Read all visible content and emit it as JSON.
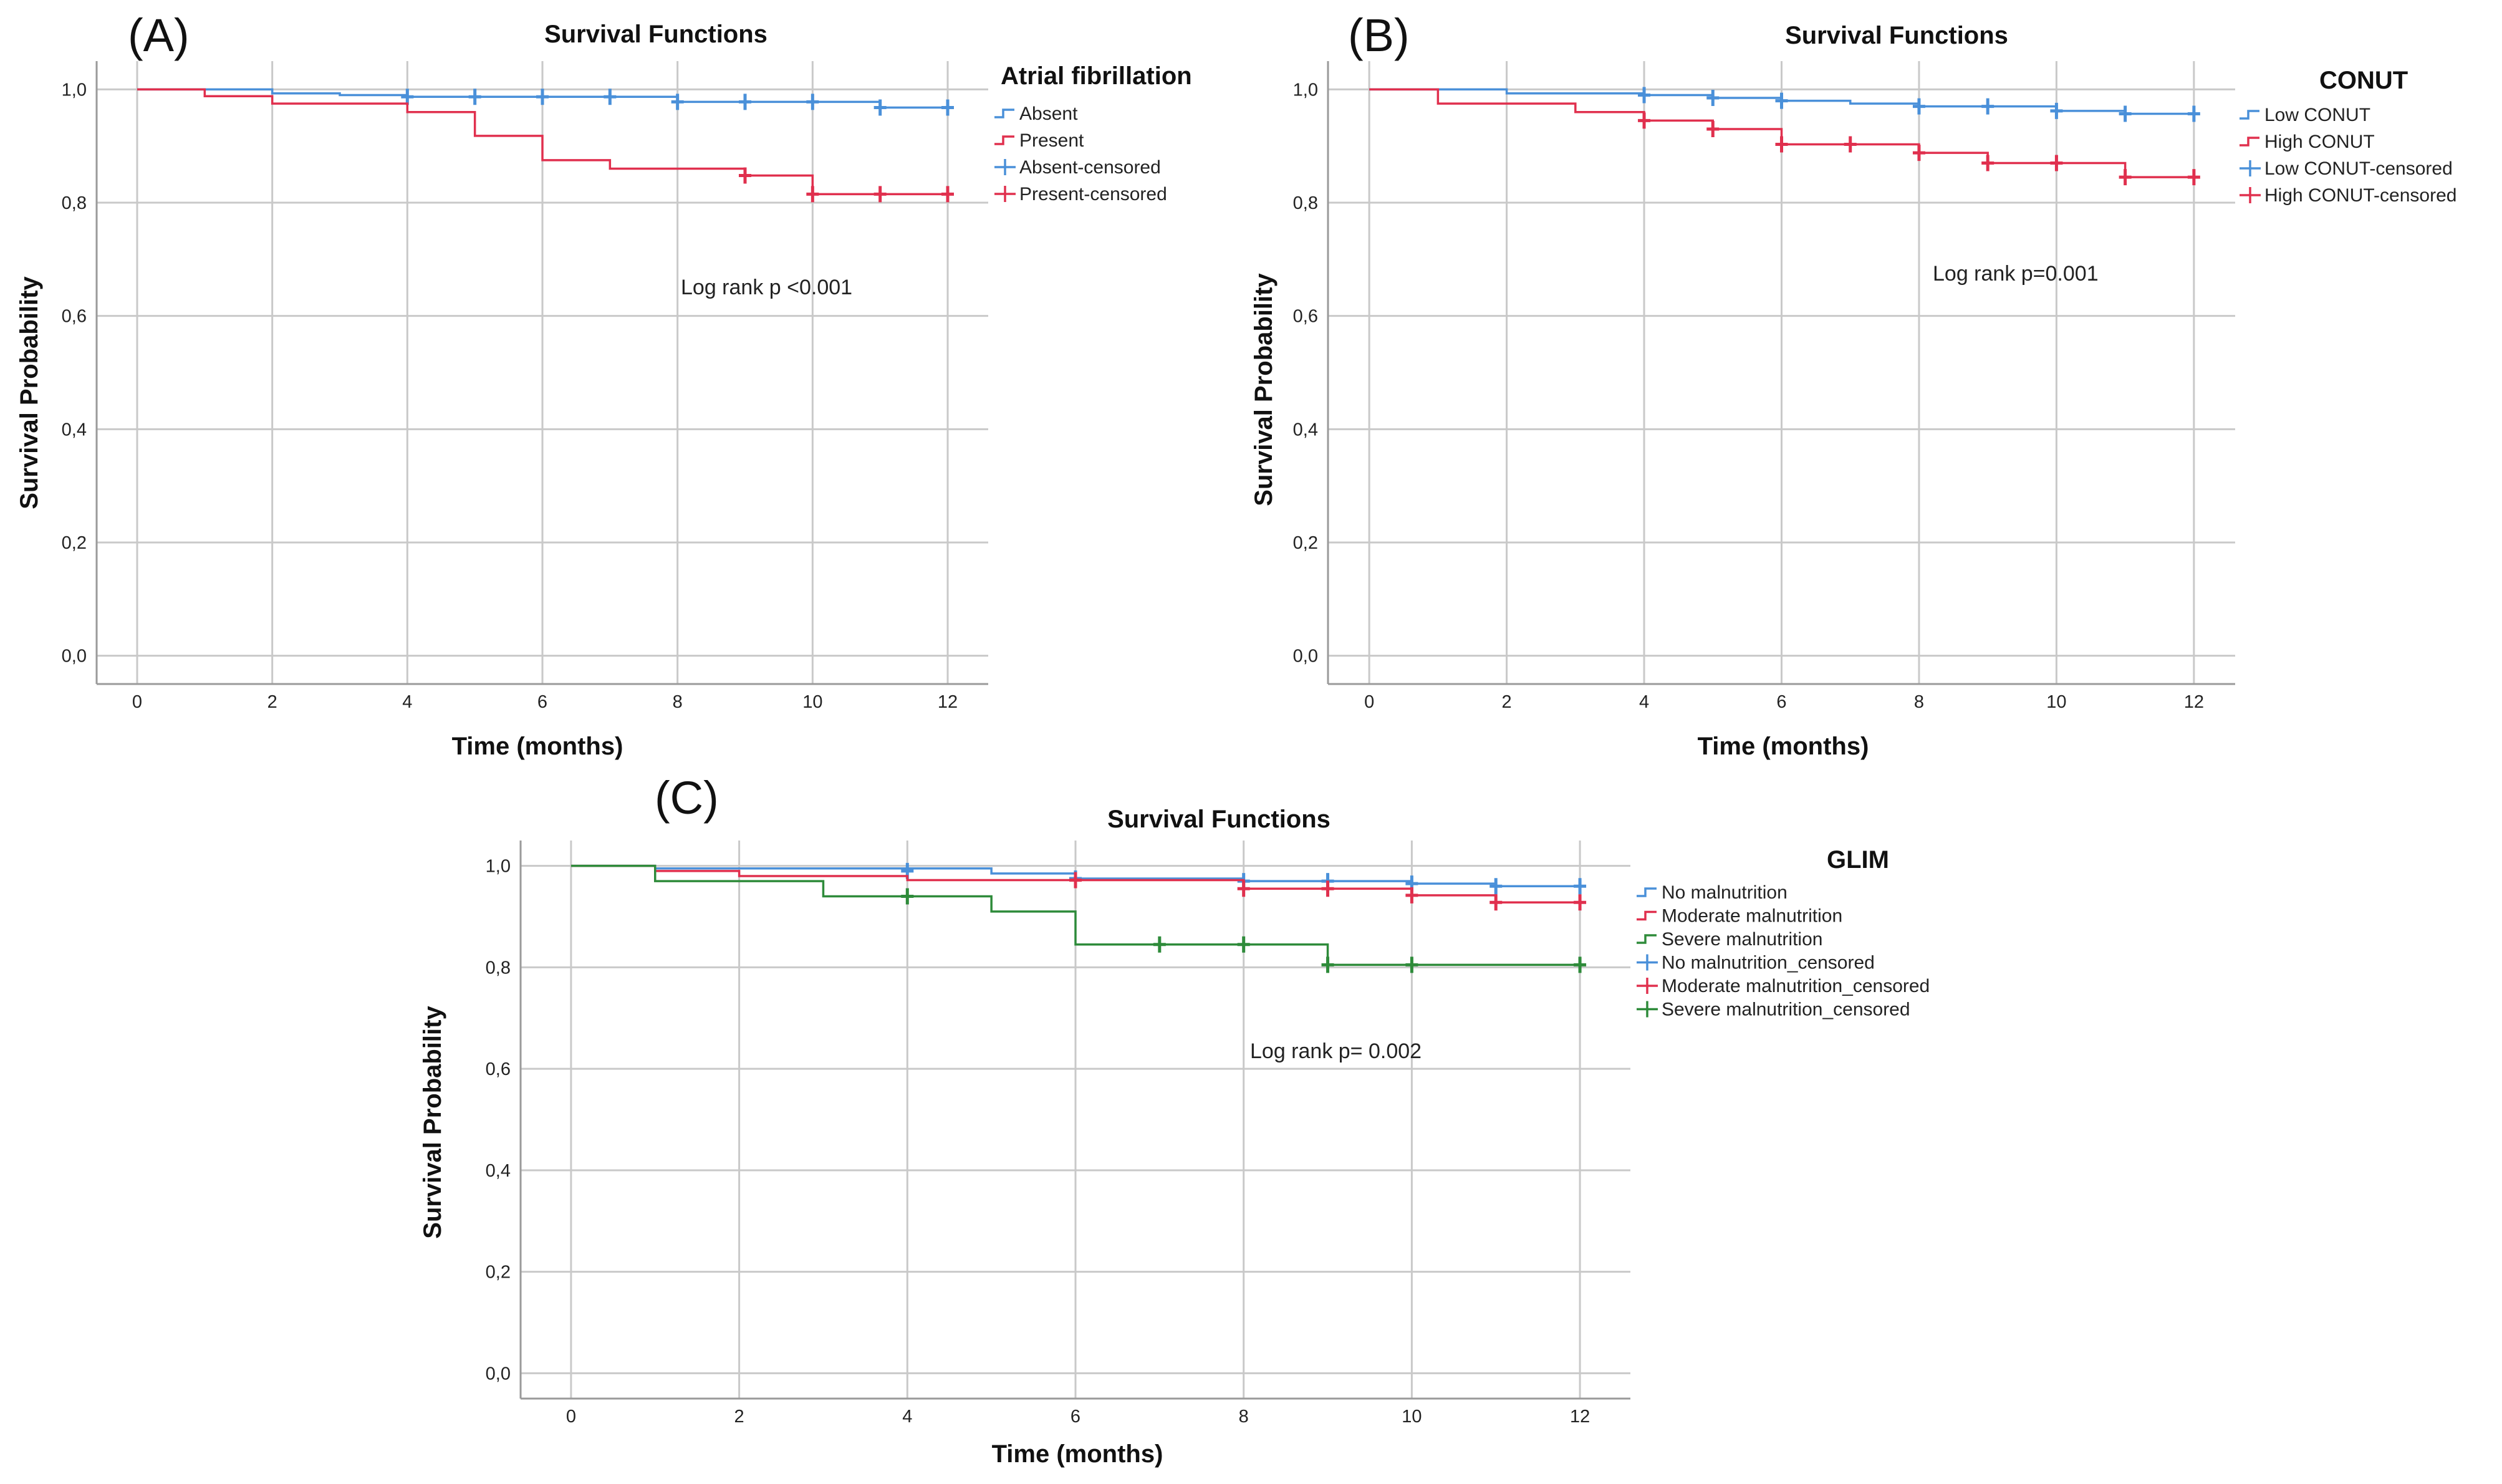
{
  "chart_data": [
    {
      "type": "line",
      "panel_label": "(A)",
      "title": "Survival Functions",
      "xlabel": "Time (months)",
      "ylabel": "Survival Probability",
      "xlim": [
        -0.6,
        12.6
      ],
      "ylim": [
        -0.05,
        1.05
      ],
      "xticks": [
        0,
        2,
        4,
        6,
        8,
        10,
        12
      ],
      "xtick_labels": [
        "0",
        "2",
        "4",
        "6",
        "8",
        "10",
        "12"
      ],
      "yticks": [
        0,
        0.2,
        0.4,
        0.6,
        0.8,
        1.0
      ],
      "ytick_labels": [
        "0,0",
        "0,2",
        "0,4",
        "0,6",
        "0,8",
        "1,0"
      ],
      "grid": true,
      "legend_title": "Atrial fibrillation",
      "legend_entries": [
        "Absent",
        "Present",
        "Absent-censored",
        "Present-censored"
      ],
      "annotation": "Log rank p <0.001",
      "series": [
        {
          "name": "Absent",
          "color": "#4a90d9",
          "steps": [
            [
              0,
              1.0
            ],
            [
              2,
              0.993
            ],
            [
              3,
              0.99
            ],
            [
              4,
              0.987
            ],
            [
              8,
              0.978
            ],
            [
              11,
              0.968
            ],
            [
              12,
              0.968
            ]
          ],
          "censored": [
            [
              4,
              0.987
            ],
            [
              5,
              0.987
            ],
            [
              6,
              0.987
            ],
            [
              7,
              0.987
            ],
            [
              8,
              0.978
            ],
            [
              9,
              0.978
            ],
            [
              10,
              0.978
            ],
            [
              11,
              0.968
            ],
            [
              12,
              0.968
            ]
          ]
        },
        {
          "name": "Present",
          "color": "#e0304e",
          "steps": [
            [
              0,
              1.0
            ],
            [
              1,
              0.988
            ],
            [
              2,
              0.975
            ],
            [
              4,
              0.96
            ],
            [
              5,
              0.918
            ],
            [
              6,
              0.875
            ],
            [
              7,
              0.86
            ],
            [
              9,
              0.848
            ],
            [
              10,
              0.815
            ],
            [
              12,
              0.815
            ]
          ],
          "censored": [
            [
              9,
              0.848
            ],
            [
              10,
              0.815
            ],
            [
              11,
              0.815
            ],
            [
              12,
              0.815
            ]
          ]
        }
      ]
    },
    {
      "type": "line",
      "panel_label": "(B)",
      "title": "Survival Functions",
      "xlabel": "Time (months)",
      "ylabel": "Survival Probability",
      "xlim": [
        -0.6,
        12.6
      ],
      "ylim": [
        -0.05,
        1.05
      ],
      "xticks": [
        0,
        2,
        4,
        6,
        8,
        10,
        12
      ],
      "xtick_labels": [
        "0",
        "2",
        "4",
        "6",
        "8",
        "10",
        "12"
      ],
      "yticks": [
        0,
        0.2,
        0.4,
        0.6,
        0.8,
        1.0
      ],
      "ytick_labels": [
        "0,0",
        "0,2",
        "0,4",
        "0,6",
        "0,8",
        "1,0"
      ],
      "grid": true,
      "legend_title": "CONUT",
      "legend_entries": [
        "Low CONUT",
        "High CONUT",
        "Low CONUT-censored",
        "High CONUT-censored"
      ],
      "annotation": "Log rank p=0.001",
      "series": [
        {
          "name": "Low CONUT",
          "color": "#4a90d9",
          "steps": [
            [
              0,
              1.0
            ],
            [
              2,
              0.993
            ],
            [
              4,
              0.99
            ],
            [
              5,
              0.985
            ],
            [
              6,
              0.98
            ],
            [
              7,
              0.975
            ],
            [
              8,
              0.97
            ],
            [
              10,
              0.962
            ],
            [
              11,
              0.957
            ],
            [
              12,
              0.957
            ]
          ],
          "censored": [
            [
              4,
              0.99
            ],
            [
              5,
              0.985
            ],
            [
              6,
              0.98
            ],
            [
              8,
              0.97
            ],
            [
              9,
              0.97
            ],
            [
              10,
              0.962
            ],
            [
              11,
              0.957
            ],
            [
              12,
              0.957
            ]
          ]
        },
        {
          "name": "High CONUT",
          "color": "#e0304e",
          "steps": [
            [
              0,
              1.0
            ],
            [
              1,
              0.975
            ],
            [
              3,
              0.96
            ],
            [
              4,
              0.945
            ],
            [
              5,
              0.93
            ],
            [
              6,
              0.903
            ],
            [
              8,
              0.888
            ],
            [
              9,
              0.87
            ],
            [
              11,
              0.845
            ],
            [
              12,
              0.845
            ]
          ],
          "censored": [
            [
              4,
              0.945
            ],
            [
              5,
              0.93
            ],
            [
              6,
              0.903
            ],
            [
              7,
              0.903
            ],
            [
              8,
              0.888
            ],
            [
              9,
              0.87
            ],
            [
              10,
              0.87
            ],
            [
              11,
              0.845
            ],
            [
              12,
              0.845
            ]
          ]
        }
      ]
    },
    {
      "type": "line",
      "panel_label": "(C)",
      "title": "Survival Functions",
      "xlabel": "Time (months)",
      "ylabel": "Survival Probability",
      "xlim": [
        -0.6,
        12.6
      ],
      "ylim": [
        -0.05,
        1.05
      ],
      "xticks": [
        0,
        2,
        4,
        6,
        8,
        10,
        12
      ],
      "xtick_labels": [
        "0",
        "2",
        "4",
        "6",
        "8",
        "10",
        "12"
      ],
      "yticks": [
        0,
        0.2,
        0.4,
        0.6,
        0.8,
        1.0
      ],
      "ytick_labels": [
        "0,0",
        "0,2",
        "0,4",
        "0,6",
        "0,8",
        "1,0"
      ],
      "grid": true,
      "legend_title": "GLIM",
      "legend_entries": [
        "No malnutrition",
        "Moderate malnutrition",
        "Severe malnutrition",
        "No malnutrition_censored",
        "Moderate malnutrition_censored",
        "Severe malnutrition_censored"
      ],
      "annotation": "Log rank p= 0.002",
      "series": [
        {
          "name": "No malnutrition",
          "color": "#4a90d9",
          "steps": [
            [
              0,
              1.0
            ],
            [
              1,
              0.995
            ],
            [
              5,
              0.985
            ],
            [
              6,
              0.975
            ],
            [
              8,
              0.97
            ],
            [
              10,
              0.965
            ],
            [
              11,
              0.96
            ],
            [
              12,
              0.96
            ]
          ],
          "censored": [
            [
              4,
              0.99
            ],
            [
              6,
              0.975
            ],
            [
              8,
              0.97
            ],
            [
              9,
              0.97
            ],
            [
              10,
              0.965
            ],
            [
              11,
              0.96
            ],
            [
              12,
              0.96
            ]
          ]
        },
        {
          "name": "Moderate malnutrition",
          "color": "#e0304e",
          "steps": [
            [
              0,
              1.0
            ],
            [
              1,
              0.99
            ],
            [
              2,
              0.98
            ],
            [
              4,
              0.972
            ],
            [
              6,
              0.972
            ],
            [
              8,
              0.955
            ],
            [
              10,
              0.942
            ],
            [
              11,
              0.928
            ],
            [
              12,
              0.928
            ]
          ],
          "censored": [
            [
              6,
              0.972
            ],
            [
              8,
              0.955
            ],
            [
              9,
              0.955
            ],
            [
              10,
              0.942
            ],
            [
              11,
              0.928
            ],
            [
              12,
              0.928
            ]
          ]
        },
        {
          "name": "Severe malnutrition",
          "color": "#2e8b3a",
          "steps": [
            [
              0,
              1.0
            ],
            [
              1,
              0.97
            ],
            [
              3,
              0.94
            ],
            [
              5,
              0.91
            ],
            [
              6,
              0.845
            ],
            [
              9,
              0.805
            ],
            [
              12,
              0.805
            ]
          ],
          "censored": [
            [
              4,
              0.94
            ],
            [
              7,
              0.845
            ],
            [
              8,
              0.845
            ],
            [
              9,
              0.805
            ],
            [
              10,
              0.805
            ],
            [
              12,
              0.805
            ]
          ]
        }
      ]
    }
  ]
}
